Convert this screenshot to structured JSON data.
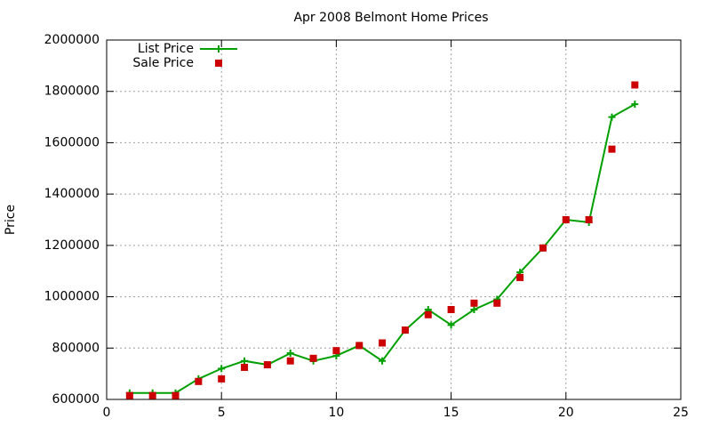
{
  "chart_data": {
    "type": "line",
    "title": "Apr 2008 Belmont Home Prices",
    "y_label": "Price",
    "x": [
      1,
      2,
      3,
      4,
      5,
      6,
      7,
      8,
      9,
      10,
      11,
      12,
      13,
      14,
      15,
      16,
      17,
      18,
      19,
      20,
      21,
      22,
      23
    ],
    "series": [
      {
        "name": "List Price",
        "color": "#00a000",
        "mode": "lines+markers",
        "marker": "plus",
        "values": [
          625000,
          625000,
          625000,
          680000,
          720000,
          750000,
          735000,
          780000,
          750000,
          770000,
          810000,
          750000,
          870000,
          950000,
          890000,
          950000,
          990000,
          1095000,
          1190000,
          1300000,
          1290000,
          1700000,
          1750000
        ]
      },
      {
        "name": "Sale Price",
        "color": "#cc0000",
        "mode": "markers",
        "marker": "square",
        "values": [
          615000,
          615000,
          615000,
          670000,
          680000,
          725000,
          735000,
          750000,
          760000,
          790000,
          810000,
          820000,
          870000,
          930000,
          950000,
          975000,
          975000,
          1075000,
          1190000,
          1300000,
          1300000,
          1575000,
          1825000
        ]
      }
    ],
    "xlim": [
      0,
      25
    ],
    "xticks": [
      0,
      5,
      10,
      15,
      20,
      25
    ],
    "ylim": [
      600000,
      2000000
    ],
    "yticks": [
      600000,
      800000,
      1000000,
      1200000,
      1400000,
      1600000,
      1800000,
      2000000
    ],
    "grid": true,
    "legend": "top-left"
  }
}
